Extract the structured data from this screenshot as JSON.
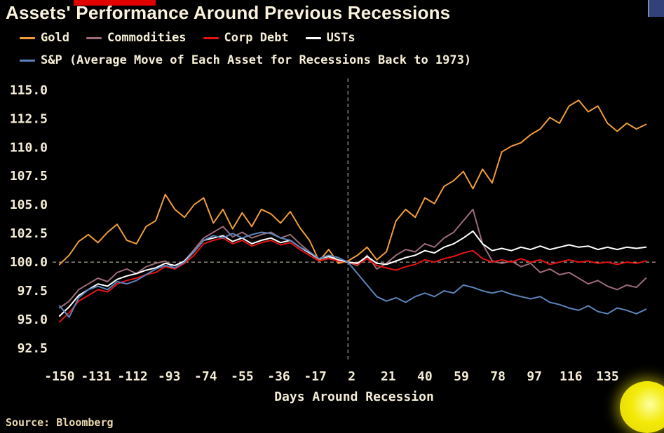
{
  "page": {
    "title": "Assets' Performance Around Previous Recessions",
    "source": "Source: Bloomberg"
  },
  "colors": {
    "background": "#000000",
    "text_cream": "#f4ecd6",
    "gold": "#f09d3c",
    "commodities": "#9c6b79",
    "corp_debt": "#e41414",
    "usts": "#ffffff",
    "sp": "#5c84ba",
    "top_bar_red": "#e00000",
    "highlight_yellow": "#f3ea08"
  },
  "legend": {
    "row1": [
      {
        "label": "Gold",
        "color": "#f09d3c"
      },
      {
        "label": "Commodities",
        "color": "#9c6b79"
      },
      {
        "label": "Corp Debt",
        "color": "#e41414"
      },
      {
        "label": "USTs",
        "color": "#ffffff"
      }
    ],
    "row2": [
      {
        "label": "S&P (Average Move of Each Asset for Recessions Back to 1973)",
        "color": "#5c84ba"
      }
    ]
  },
  "chart_data": {
    "type": "line",
    "title": "Assets' Performance Around Previous Recessions",
    "xlabel": "Days Around Recession",
    "ylabel": "",
    "legend_position": "top-left",
    "grid": "dashed reference lines at y=100 and day 0 only",
    "x_ticks": [
      -150,
      -131,
      -112,
      -93,
      -74,
      -55,
      -36,
      -17,
      2,
      21,
      40,
      59,
      78,
      97,
      116,
      135
    ],
    "y_ticks": [
      92.5,
      95.0,
      97.5,
      100.0,
      102.5,
      105.0,
      107.5,
      110.0,
      112.5,
      115.0
    ],
    "xlim": [
      -153.6,
      160
    ],
    "ylim": [
      91.4,
      116
    ],
    "reference_lines": {
      "horizontal_y": 100,
      "vertical_x": 0
    },
    "x": [
      -150,
      -145,
      -140,
      -135,
      -130,
      -125,
      -120,
      -115,
      -110,
      -105,
      -100,
      -95,
      -90,
      -85,
      -80,
      -75,
      -70,
      -65,
      -60,
      -55,
      -50,
      -45,
      -40,
      -35,
      -30,
      -25,
      -20,
      -15,
      -10,
      -5,
      0,
      5,
      10,
      15,
      20,
      25,
      30,
      35,
      40,
      45,
      50,
      55,
      60,
      65,
      70,
      75,
      80,
      85,
      90,
      95,
      100,
      105,
      110,
      115,
      120,
      125,
      130,
      135,
      140,
      145,
      150,
      155
    ],
    "series": [
      {
        "name": "Gold",
        "color": "#f09d3c",
        "values": [
          99.8,
          100.6,
          101.8,
          102.4,
          101.7,
          102.6,
          103.3,
          101.9,
          101.6,
          103.1,
          103.6,
          105.9,
          104.6,
          103.9,
          105.0,
          105.6,
          103.4,
          104.6,
          102.9,
          104.3,
          103.1,
          104.6,
          104.2,
          103.4,
          104.4,
          103.0,
          101.9,
          100.1,
          101.1,
          99.9,
          100.1,
          100.6,
          101.3,
          100.2,
          100.9,
          103.6,
          104.6,
          103.9,
          105.6,
          105.1,
          106.6,
          107.1,
          107.9,
          106.4,
          108.1,
          106.9,
          109.6,
          110.1,
          110.4,
          111.1,
          111.6,
          112.6,
          112.1,
          113.6,
          114.1,
          113.1,
          113.6,
          112.1,
          111.4,
          112.1,
          111.6,
          112.0
        ]
      },
      {
        "name": "Commodities",
        "color": "#9c6b79",
        "values": [
          96.0,
          96.6,
          97.6,
          98.1,
          98.6,
          98.3,
          99.1,
          99.4,
          99.0,
          99.6,
          99.9,
          100.1,
          99.4,
          100.1,
          101.1,
          102.1,
          102.6,
          103.1,
          102.2,
          102.6,
          102.1,
          102.4,
          102.6,
          102.1,
          102.4,
          101.6,
          100.9,
          100.1,
          100.4,
          100.1,
          100.0,
          99.7,
          100.6,
          99.4,
          99.9,
          100.6,
          101.1,
          100.9,
          101.6,
          101.3,
          102.1,
          102.6,
          103.6,
          104.6,
          101.6,
          100.1,
          99.9,
          100.1,
          99.6,
          99.9,
          99.1,
          99.4,
          98.9,
          99.1,
          98.6,
          98.1,
          98.4,
          97.9,
          97.6,
          98.0,
          97.8,
          98.6
        ]
      },
      {
        "name": "Corp Debt",
        "color": "#e41414",
        "values": [
          94.8,
          95.6,
          96.6,
          97.1,
          97.6,
          97.4,
          98.1,
          98.4,
          98.6,
          98.9,
          99.1,
          99.6,
          99.4,
          99.9,
          100.6,
          101.6,
          101.9,
          102.1,
          101.6,
          101.9,
          101.4,
          101.7,
          101.9,
          101.5,
          101.7,
          101.1,
          100.6,
          100.1,
          100.3,
          100.1,
          100.0,
          99.8,
          100.3,
          99.7,
          99.5,
          99.3,
          99.6,
          99.8,
          100.2,
          100.0,
          100.3,
          100.5,
          100.8,
          101.0,
          100.3,
          100.0,
          100.2,
          100.0,
          100.3,
          100.0,
          100.2,
          99.8,
          100.0,
          100.2,
          100.0,
          100.1,
          99.9,
          100.0,
          99.8,
          100.0,
          99.9,
          100.1
        ]
      },
      {
        "name": "USTs",
        "color": "#ffffff",
        "values": [
          95.3,
          96.1,
          97.1,
          97.6,
          98.1,
          97.9,
          98.5,
          98.8,
          99.0,
          99.3,
          99.5,
          99.9,
          99.7,
          100.1,
          100.9,
          101.9,
          102.1,
          102.3,
          101.8,
          102.1,
          101.6,
          101.9,
          102.1,
          101.7,
          101.9,
          101.3,
          100.8,
          100.3,
          100.5,
          100.2,
          100.0,
          99.9,
          100.5,
          99.9,
          99.8,
          100.1,
          100.4,
          100.6,
          101.0,
          100.8,
          101.3,
          101.6,
          102.1,
          102.7,
          101.6,
          101.0,
          101.2,
          101.0,
          101.3,
          101.1,
          101.4,
          101.1,
          101.3,
          101.5,
          101.3,
          101.4,
          101.1,
          101.3,
          101.1,
          101.3,
          101.2,
          101.3
        ]
      },
      {
        "name": "S&P",
        "color": "#5c84ba",
        "values": [
          96.2,
          95.2,
          96.9,
          97.6,
          97.9,
          97.6,
          98.3,
          98.1,
          98.4,
          98.9,
          99.4,
          99.7,
          99.5,
          100.0,
          100.9,
          101.9,
          102.3,
          102.1,
          102.5,
          102.1,
          102.4,
          102.6,
          102.5,
          102.1,
          101.9,
          101.3,
          100.9,
          100.3,
          100.6,
          100.4,
          100.0,
          99.0,
          98.0,
          97.0,
          96.6,
          96.9,
          96.5,
          97.0,
          97.3,
          97.0,
          97.5,
          97.3,
          98.0,
          97.8,
          97.5,
          97.3,
          97.5,
          97.2,
          97.0,
          96.8,
          97.0,
          96.5,
          96.3,
          96.0,
          95.8,
          96.2,
          95.7,
          95.5,
          96.0,
          95.8,
          95.5,
          95.9
        ]
      }
    ]
  }
}
